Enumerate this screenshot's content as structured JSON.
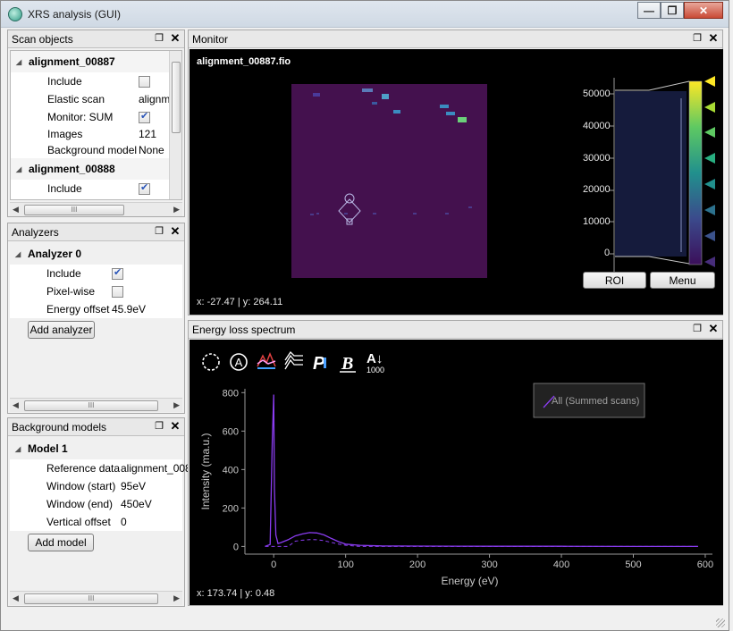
{
  "window": {
    "title": "XRS analysis (GUI)",
    "min_label": "—",
    "max_label": "❐",
    "close_label": "✕"
  },
  "scan_objects": {
    "title": "Scan objects",
    "groups": [
      {
        "name": "alignment_00887",
        "rows": [
          {
            "label": "Include",
            "type": "check",
            "checked": false
          },
          {
            "label": "Elastic scan",
            "value": "alignm"
          },
          {
            "label": "Monitor: SUM",
            "type": "check",
            "checked": true
          },
          {
            "label": "Images",
            "value": "121"
          },
          {
            "label": "Background model",
            "value": "None"
          }
        ]
      },
      {
        "name": "alignment_00888",
        "rows": [
          {
            "label": "Include",
            "type": "check",
            "checked": true
          }
        ]
      }
    ]
  },
  "analyzers": {
    "title": "Analyzers",
    "group": "Analyzer 0",
    "include_label": "Include",
    "pixelwise_label": "Pixel-wise",
    "energy_offset_label": "Energy offset",
    "energy_offset_value": "45.9eV",
    "add_button": "Add analyzer"
  },
  "background_models": {
    "title": "Background models",
    "group": "Model 1",
    "reference_label": "Reference data",
    "reference_value": "alignment_008",
    "window_start_label": "Window (start)",
    "window_start_value": "95eV",
    "window_end_label": "Window (end)",
    "window_end_value": "450eV",
    "vertical_offset_label": "Vertical offset",
    "vertical_offset_value": "0",
    "add_button": "Add model"
  },
  "monitor": {
    "title": "Monitor",
    "filename": "alignment_00887.fio",
    "coords": "x: -27.47 | y: 264.11",
    "colorbar_ticks": [
      "50000",
      "40000",
      "30000",
      "20000",
      "10000",
      "0"
    ],
    "roi_button": "ROI",
    "menu_button": "Menu"
  },
  "spectrum": {
    "title": "Energy loss spectrum",
    "coords": "x: 173.74 | y: 0.48",
    "tool_icons": [
      "roi-circle-icon",
      "a-circle-icon",
      "spectra-color-icon",
      "waterfall-icon",
      "p-icon",
      "b-icon",
      "az-sort-icon"
    ],
    "sort_icon_sub": "1000"
  },
  "chart_data": {
    "type": "line",
    "xlabel": "Energy (eV)",
    "ylabel": "Intensity (ma.u.)",
    "xlim": [
      -40,
      610
    ],
    "ylim": [
      -40,
      820
    ],
    "xticks": [
      0,
      100,
      200,
      300,
      400,
      500,
      600
    ],
    "yticks": [
      0,
      200,
      400,
      600,
      800
    ],
    "legend_placement": "top-right",
    "series": [
      {
        "name": "All (Summed scans)",
        "color": "#8a3cf0",
        "x": [
          -12,
          -5,
          -2,
          0,
          1,
          3,
          6,
          10,
          20,
          30,
          40,
          50,
          60,
          70,
          80,
          90,
          100,
          120,
          150,
          200,
          300,
          400,
          500,
          590
        ],
        "y": [
          0,
          10,
          550,
          790,
          300,
          60,
          15,
          20,
          35,
          55,
          65,
          72,
          70,
          60,
          42,
          25,
          12,
          6,
          3,
          2,
          1,
          1,
          0,
          0
        ]
      }
    ]
  }
}
